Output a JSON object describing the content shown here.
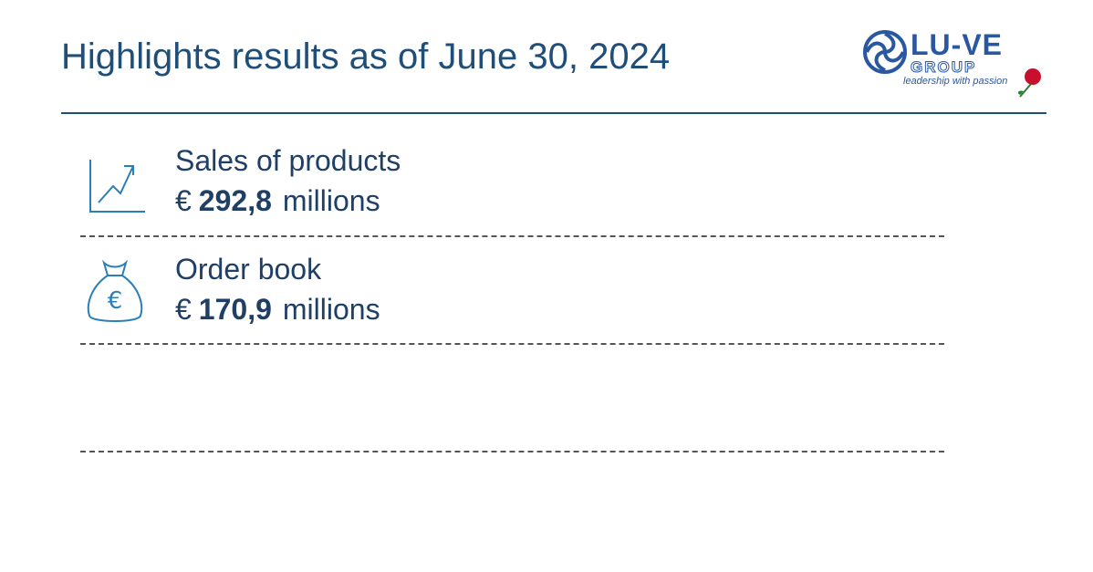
{
  "header": {
    "title": "Highlights results as of June 30, 2024",
    "logo": {
      "name": "LU-VE",
      "group": "GROUP",
      "tagline": "leadership with passion"
    }
  },
  "items": [
    {
      "label": "Sales of products",
      "currency": "€",
      "value": "292,8",
      "unit": "millions"
    },
    {
      "label": "Order book",
      "currency": "€",
      "value": "170,9",
      "unit": "millions"
    }
  ]
}
